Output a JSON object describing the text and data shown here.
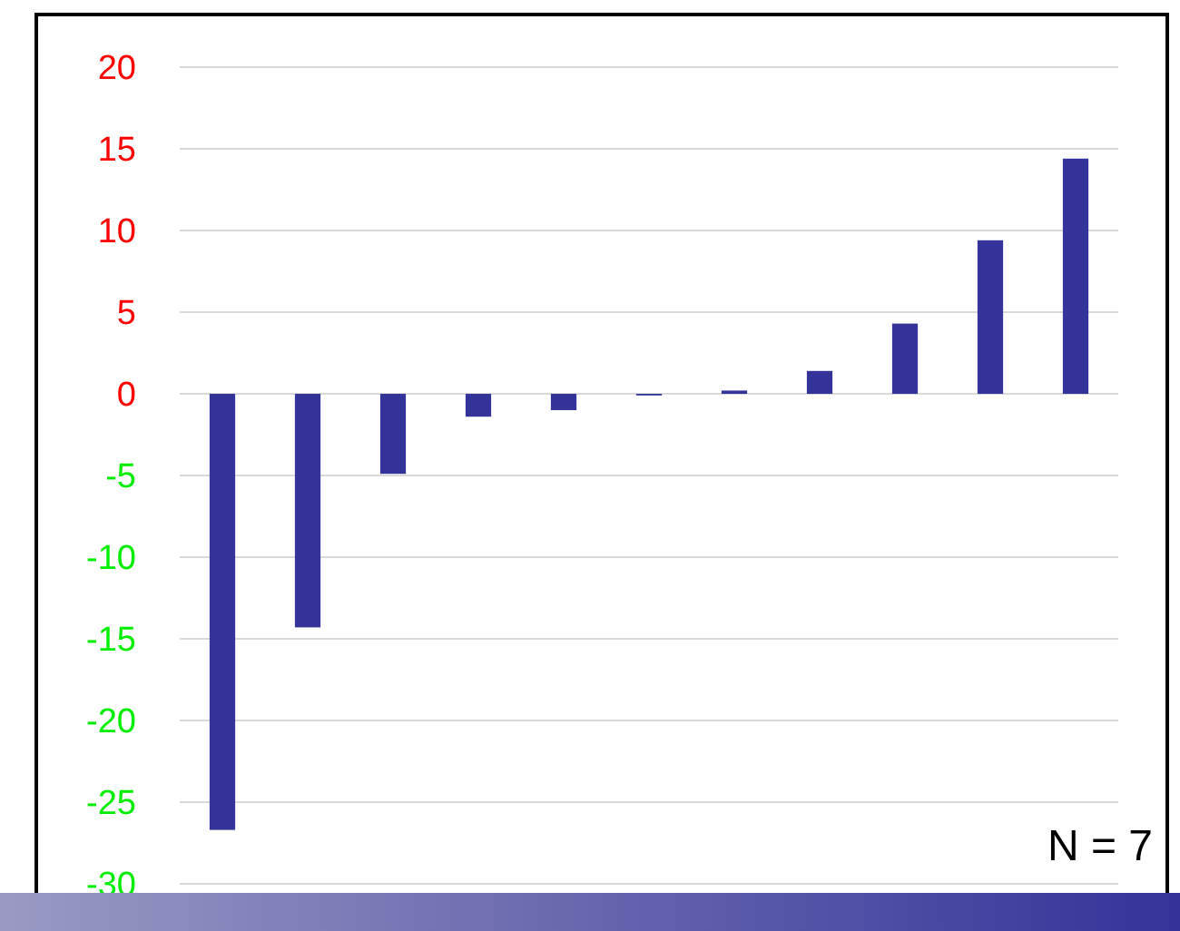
{
  "chart_data": {
    "type": "bar",
    "categories": [
      null,
      null,
      null,
      null,
      null,
      null,
      null,
      null,
      null,
      null,
      null
    ],
    "values": [
      -26.7,
      -14.3,
      -4.9,
      -1.4,
      -1.0,
      -0.1,
      0.2,
      1.4,
      4.3,
      9.4,
      14.4
    ],
    "color": "#333399",
    "ylim": [
      -30,
      20
    ],
    "yticks": [
      -30,
      -25,
      -20,
      -15,
      -10,
      -5,
      0,
      5,
      10,
      15,
      20
    ],
    "grid": "y",
    "annotations": [
      "N = 7"
    ]
  }
}
